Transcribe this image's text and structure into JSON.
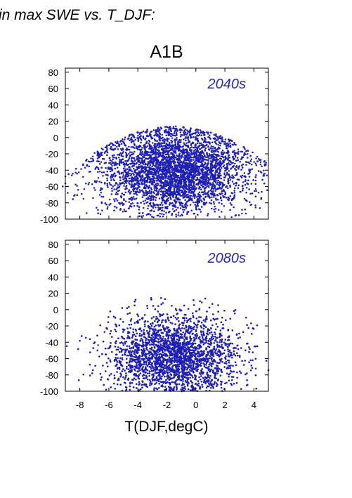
{
  "heading": "in max SWE vs. T_DJF:",
  "colors": {
    "points": "#1f1fb4",
    "decade_label": "#2a2ab8",
    "axes": "#000000"
  },
  "chart_data": [
    {
      "type": "scatter",
      "title": "A1B",
      "annotation": "2040s",
      "xlabel": "",
      "ylabel": "",
      "xlim": [
        -9,
        5
      ],
      "ylim": [
        -100,
        85
      ],
      "yticks": [
        80,
        60,
        40,
        20,
        0,
        -20,
        -40,
        -60,
        -80,
        -100
      ],
      "xticks": [
        -8,
        -6,
        -4,
        -2,
        0,
        2,
        4
      ],
      "grid": false,
      "cloud": {
        "x_range": [
          -9.2,
          5.0
        ],
        "core_x_range": [
          -5.5,
          2.5
        ],
        "y_range": [
          -98,
          14
        ],
        "core_y_range": [
          -80,
          0
        ],
        "n_points": 5200
      }
    },
    {
      "type": "scatter",
      "annotation": "2080s",
      "xlabel": "T(DJF,degC)",
      "ylabel": "",
      "xlim": [
        -9,
        5
      ],
      "ylim": [
        -100,
        85
      ],
      "yticks": [
        80,
        60,
        40,
        20,
        0,
        -20,
        -40,
        -60,
        -80,
        -100
      ],
      "xticks": [
        -8,
        -6,
        -4,
        -2,
        0,
        2,
        4
      ],
      "xticklabels": [
        "-8",
        "-6",
        "-4",
        "-2",
        "0",
        "2",
        "4"
      ],
      "grid": false,
      "cloud": {
        "x_range": [
          -9.2,
          5.0
        ],
        "core_x_range": [
          -5.0,
          2.0
        ],
        "y_range": [
          -100,
          20
        ],
        "core_y_range": [
          -95,
          -20
        ],
        "n_points": 5200
      }
    }
  ]
}
